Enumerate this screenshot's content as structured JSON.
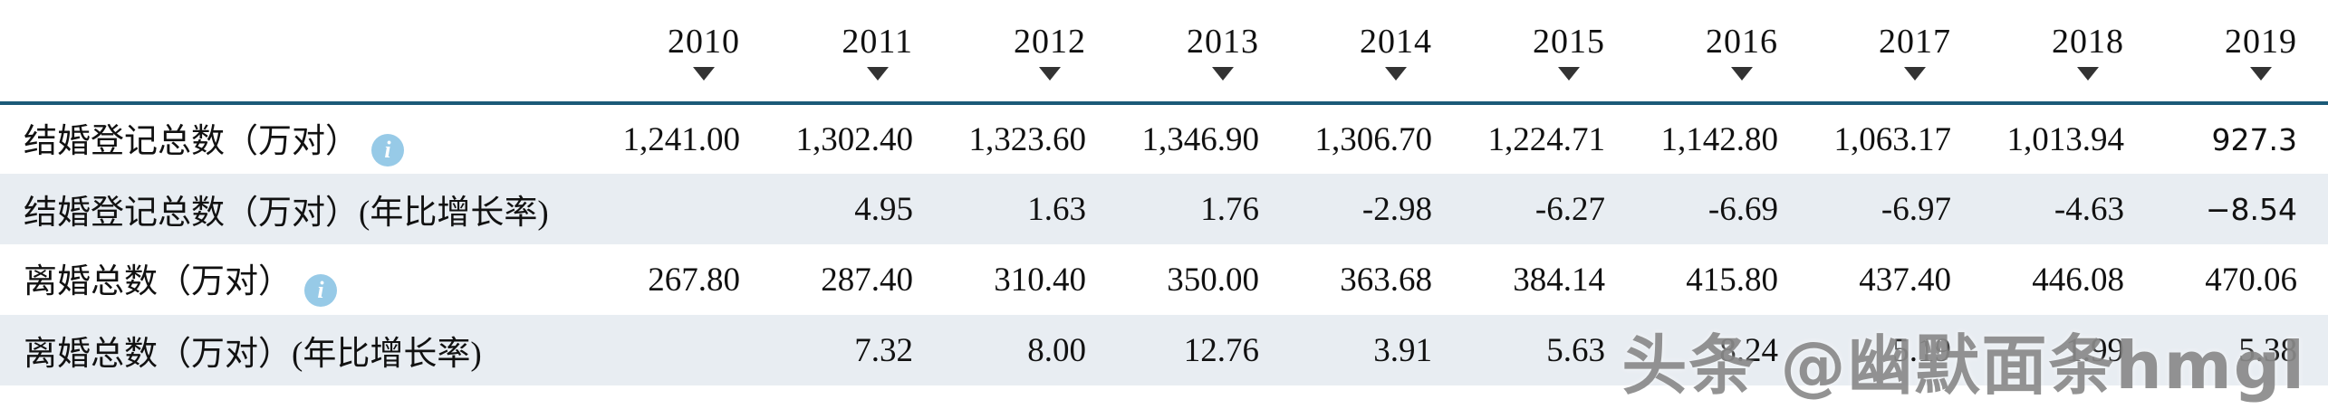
{
  "table": {
    "years": [
      "2010",
      "2011",
      "2012",
      "2013",
      "2014",
      "2015",
      "2016",
      "2017",
      "2018",
      "2019"
    ],
    "rows": [
      {
        "label": "结婚登记总数（万对）",
        "info_icon": true,
        "values": [
          "1,241.00",
          "1,302.40",
          "1,323.60",
          "1,346.90",
          "1,306.70",
          "1,224.71",
          "1,142.80",
          "1,063.17",
          "1,013.94",
          "927.3"
        ]
      },
      {
        "label": "结婚登记总数（万对）(年比增长率)",
        "info_icon": false,
        "values": [
          "",
          "4.95",
          "1.63",
          "1.76",
          "-2.98",
          "-6.27",
          "-6.69",
          "-6.97",
          "-4.63",
          "−8.54"
        ]
      },
      {
        "label": "离婚总数（万对）",
        "info_icon": true,
        "values": [
          "267.80",
          "287.40",
          "310.40",
          "350.00",
          "363.68",
          "384.14",
          "415.80",
          "437.40",
          "446.08",
          "470.06"
        ]
      },
      {
        "label": "离婚总数（万对）(年比增长率)",
        "info_icon": false,
        "values": [
          "",
          "7.32",
          "8.00",
          "12.76",
          "3.91",
          "5.63",
          "8.24",
          "5.19",
          "1.99",
          "5.38"
        ]
      }
    ],
    "info_icon_glyph": "i"
  },
  "watermark": {
    "text": "头条 @幽默面条hmgl"
  },
  "colors": {
    "header_line": "#1b5a78",
    "stripe_bg": "#e8edf2",
    "info_icon_bg": "#85c1e3",
    "watermark": "#8a8a8a"
  }
}
